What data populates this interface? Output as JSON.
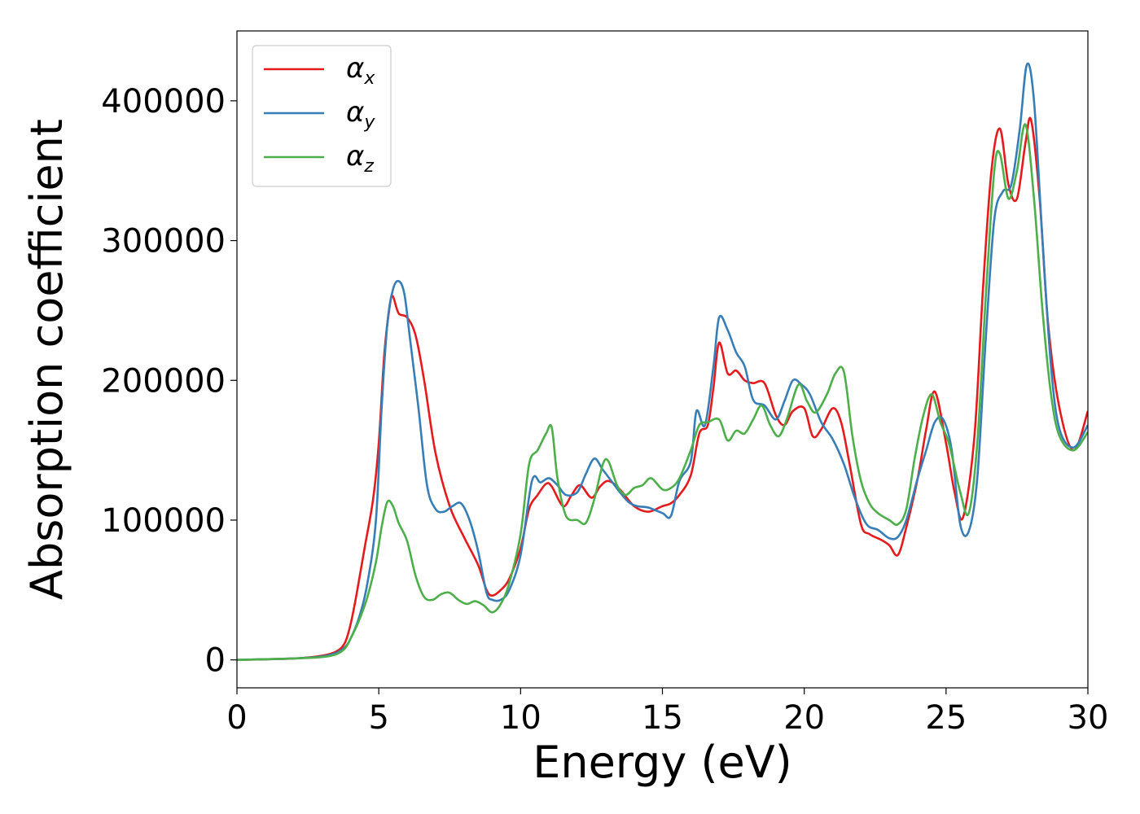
{
  "chart_data": {
    "type": "line",
    "xlabel": "Energy (eV)",
    "ylabel": "Absorption coefficient",
    "xlim": [
      0,
      30
    ],
    "ylim": [
      -20000,
      450000
    ],
    "xticks": [
      0,
      5,
      10,
      15,
      20,
      25,
      30
    ],
    "xtick_labels": [
      "0",
      "5",
      "10",
      "15",
      "20",
      "25",
      "30"
    ],
    "yticks": [
      0,
      100000,
      200000,
      300000,
      400000
    ],
    "ytick_labels": [
      "0",
      "100000",
      "200000",
      "300000",
      "400000"
    ],
    "grid": false,
    "legend_position": "upper-left",
    "colors": {
      "alpha_x": "#e41a1c",
      "alpha_y": "#377eb8",
      "alpha_z": "#4daf4a"
    },
    "series": [
      {
        "name": "αx",
        "legend_base": "α",
        "legend_sub": "x",
        "x": [
          0,
          2,
          3,
          3.5,
          3.8,
          4.0,
          4.2,
          4.5,
          4.8,
          5.0,
          5.2,
          5.4,
          5.5,
          5.7,
          6.0,
          6.3,
          6.6,
          7.0,
          7.5,
          8.0,
          8.5,
          8.8,
          9.0,
          9.3,
          9.6,
          10.0,
          10.3,
          10.6,
          10.9,
          11.1,
          11.5,
          11.8,
          12.1,
          12.5,
          12.8,
          13.1,
          13.5,
          14.0,
          14.5,
          15.0,
          15.3,
          15.6,
          16.0,
          16.3,
          16.6,
          16.8,
          17.0,
          17.3,
          17.6,
          17.9,
          18.2,
          18.6,
          19.0,
          19.3,
          19.6,
          20.0,
          20.3,
          20.6,
          21.0,
          21.3,
          21.6,
          22.0,
          22.3,
          22.7,
          23.0,
          23.3,
          23.6,
          24.0,
          24.3,
          24.6,
          25.0,
          25.3,
          25.6,
          26.0,
          26.3,
          26.6,
          26.9,
          27.2,
          27.5,
          27.8,
          28.0,
          28.3,
          28.6,
          29.0,
          29.5,
          30.0
        ],
        "y": [
          0,
          1000,
          3000,
          6000,
          12000,
          25000,
          45000,
          80000,
          115000,
          155000,
          220000,
          255000,
          260000,
          248000,
          245000,
          232000,
          200000,
          148000,
          110000,
          88000,
          68000,
          50000,
          46000,
          50000,
          58000,
          80000,
          108000,
          118000,
          126000,
          124000,
          110000,
          118000,
          125000,
          116000,
          124000,
          128000,
          122000,
          110000,
          106000,
          110000,
          112000,
          118000,
          132000,
          162000,
          168000,
          195000,
          227000,
          205000,
          207000,
          200000,
          198000,
          198000,
          175000,
          168000,
          178000,
          180000,
          160000,
          165000,
          180000,
          170000,
          140000,
          97000,
          90000,
          86000,
          82000,
          75000,
          95000,
          130000,
          165000,
          192000,
          155000,
          120000,
          102000,
          160000,
          265000,
          350000,
          380000,
          340000,
          330000,
          370000,
          386000,
          330000,
          240000,
          180000,
          150000,
          178000
        ]
      },
      {
        "name": "αy",
        "legend_base": "α",
        "legend_sub": "y",
        "x": [
          0,
          2,
          3,
          3.5,
          3.8,
          4.0,
          4.3,
          4.6,
          4.9,
          5.1,
          5.3,
          5.5,
          5.7,
          5.9,
          6.1,
          6.4,
          6.7,
          7.0,
          7.3,
          7.6,
          7.9,
          8.2,
          8.5,
          8.8,
          9.0,
          9.3,
          9.6,
          10.0,
          10.4,
          10.7,
          11.0,
          11.3,
          11.6,
          12.0,
          12.3,
          12.6,
          12.9,
          13.2,
          13.5,
          13.8,
          14.1,
          14.5,
          15.0,
          15.3,
          15.6,
          16.0,
          16.2,
          16.5,
          16.8,
          17.0,
          17.3,
          17.6,
          17.9,
          18.2,
          18.6,
          19.0,
          19.3,
          19.6,
          19.9,
          20.2,
          20.6,
          21.0,
          21.4,
          21.8,
          22.2,
          22.6,
          23.0,
          23.3,
          23.6,
          24.0,
          24.3,
          24.6,
          24.9,
          25.2,
          25.5,
          25.8,
          26.1,
          26.4,
          26.7,
          27.0,
          27.3,
          27.6,
          27.85,
          28.1,
          28.4,
          28.7,
          29.0,
          29.5,
          30.0
        ],
        "y": [
          0,
          1000,
          2500,
          5000,
          9000,
          15000,
          30000,
          55000,
          100000,
          180000,
          240000,
          265000,
          271000,
          262000,
          230000,
          180000,
          125000,
          108000,
          106000,
          110000,
          112000,
          100000,
          78000,
          48000,
          43000,
          43000,
          50000,
          75000,
          128000,
          127000,
          130000,
          125000,
          118000,
          120000,
          133000,
          144000,
          136000,
          128000,
          120000,
          113000,
          110000,
          109000,
          105000,
          103000,
          128000,
          142000,
          178000,
          168000,
          210000,
          245000,
          236000,
          220000,
          210000,
          186000,
          182000,
          172000,
          185000,
          200000,
          197000,
          190000,
          170000,
          158000,
          140000,
          115000,
          97000,
          93000,
          87000,
          88000,
          100000,
          130000,
          150000,
          170000,
          172000,
          150000,
          97000,
          92000,
          130000,
          230000,
          315000,
          335000,
          340000,
          380000,
          426000,
          400000,
          300000,
          210000,
          165000,
          152000,
          168000
        ]
      },
      {
        "name": "αz",
        "legend_base": "α",
        "legend_sub": "z",
        "x": [
          0,
          2,
          3,
          3.5,
          3.8,
          4.0,
          4.3,
          4.6,
          4.9,
          5.1,
          5.3,
          5.5,
          5.7,
          6.0,
          6.3,
          6.6,
          6.9,
          7.2,
          7.5,
          7.8,
          8.1,
          8.4,
          8.7,
          9.0,
          9.3,
          9.6,
          10.0,
          10.3,
          10.6,
          10.9,
          11.1,
          11.3,
          11.6,
          12.0,
          12.3,
          12.6,
          12.9,
          13.1,
          13.4,
          13.7,
          14.0,
          14.3,
          14.6,
          15.0,
          15.3,
          15.6,
          16.0,
          16.3,
          16.6,
          17.0,
          17.3,
          17.6,
          17.9,
          18.2,
          18.5,
          18.8,
          19.1,
          19.4,
          19.8,
          20.1,
          20.4,
          20.8,
          21.1,
          21.4,
          21.7,
          22.0,
          22.3,
          22.6,
          23.0,
          23.3,
          23.6,
          23.9,
          24.2,
          24.5,
          24.8,
          25.1,
          25.5,
          25.8,
          26.1,
          26.4,
          26.7,
          26.9,
          27.2,
          27.5,
          27.8,
          28.1,
          28.4,
          28.7,
          29.0,
          29.5,
          30.0
        ],
        "y": [
          0,
          1000,
          2000,
          4000,
          8000,
          15000,
          28000,
          45000,
          70000,
          95000,
          113000,
          110000,
          98000,
          85000,
          60000,
          45000,
          43000,
          47000,
          48000,
          43000,
          40000,
          42000,
          39000,
          34000,
          40000,
          55000,
          90000,
          140000,
          150000,
          162000,
          166000,
          130000,
          103000,
          100000,
          98000,
          115000,
          140000,
          142000,
          125000,
          118000,
          123000,
          125000,
          130000,
          122000,
          123000,
          130000,
          150000,
          168000,
          170000,
          172000,
          157000,
          164000,
          162000,
          172000,
          182000,
          168000,
          160000,
          173000,
          197000,
          185000,
          177000,
          190000,
          205000,
          206000,
          160000,
          128000,
          112000,
          105000,
          100000,
          97000,
          108000,
          145000,
          175000,
          190000,
          170000,
          155000,
          120000,
          105000,
          155000,
          260000,
          350000,
          362000,
          330000,
          350000,
          383000,
          330000,
          250000,
          190000,
          160000,
          150000,
          163000
        ]
      }
    ]
  }
}
